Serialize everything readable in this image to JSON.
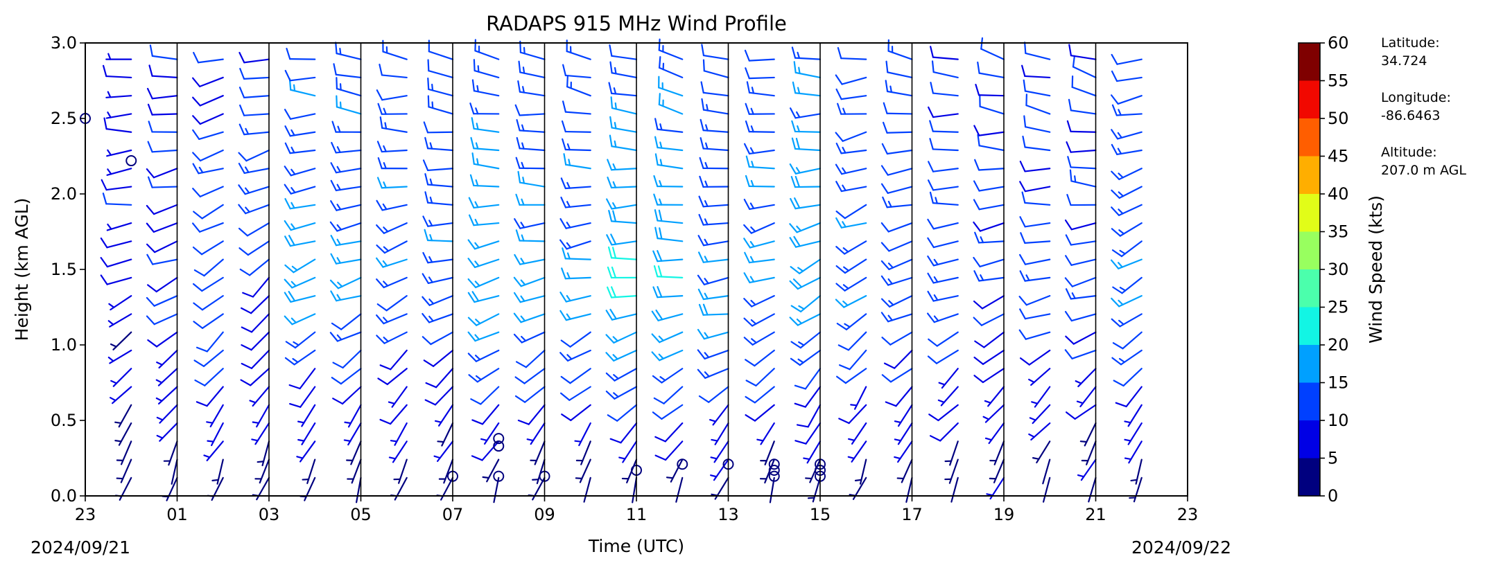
{
  "chart_data": {
    "type": "wind_barb_profile",
    "title": "RADAPS 915 MHz Wind Profile",
    "xlabel": "Time (UTC)",
    "ylabel": "Height (km AGL)",
    "xlim_hours_utc": [
      23,
      47
    ],
    "ylim": [
      0.0,
      3.0
    ],
    "x_ticks": [
      "23",
      "01",
      "03",
      "05",
      "07",
      "09",
      "11",
      "13",
      "15",
      "17",
      "19",
      "21",
      "23"
    ],
    "y_ticks": [
      "0.0",
      "0.5",
      "1.0",
      "1.5",
      "2.0",
      "2.5",
      "3.0"
    ],
    "start_date": "2024/09/21",
    "end_date": "2024/09/22",
    "colorbar": {
      "label": "Wind Speed (kts)",
      "boundaries": [
        0,
        5,
        10,
        15,
        20,
        25,
        30,
        35,
        40,
        45,
        50,
        55,
        60
      ],
      "tick_labels": [
        "0",
        "5",
        "10",
        "15",
        "20",
        "25",
        "30",
        "35",
        "40",
        "45",
        "50",
        "55",
        "60"
      ],
      "colors": [
        "#00007f",
        "#0000e5",
        "#0040ff",
        "#00a0ff",
        "#12f5e4",
        "#4bffac",
        "#98ff5f",
        "#e1fd18",
        "#ffae00",
        "#ff5e00",
        "#f10800",
        "#7f0000"
      ]
    },
    "site_info": [
      {
        "label": "Latitude:",
        "value": "34.724"
      },
      {
        "label": "Longitude:",
        "value": "-86.6463"
      },
      {
        "label": "Altitude:",
        "value": "207.0 m AGL"
      }
    ],
    "profile_times_utc": [
      24,
      25,
      26,
      27,
      28,
      29,
      30,
      31,
      32,
      33,
      34,
      35,
      36,
      37,
      38,
      39,
      40,
      41,
      42,
      43,
      44,
      45,
      46
    ],
    "wind_profile_breaks": [
      {
        "time": 24,
        "height": 1.4,
        "speed_kts": 8,
        "direction_deg": 250
      },
      {
        "time": 25,
        "height": 1.4,
        "speed_kts": 10,
        "direction_deg": 245
      },
      {
        "time": 26,
        "height": 1.0,
        "speed_kts": 12,
        "direction_deg": 230
      },
      {
        "time": 27,
        "height": 1.8,
        "speed_kts": 12,
        "direction_deg": 240
      },
      {
        "time": 28,
        "height": 1.5,
        "speed_kts": 18,
        "direction_deg": 250
      },
      {
        "time": 29,
        "height": 1.5,
        "speed_kts": 17,
        "direction_deg": 255
      },
      {
        "time": 30,
        "height": 1.6,
        "speed_kts": 15,
        "direction_deg": 250
      },
      {
        "time": 31,
        "height": 1.4,
        "speed_kts": 14,
        "direction_deg": 255
      },
      {
        "time": 32,
        "height": 1.4,
        "speed_kts": 18,
        "direction_deg": 255
      },
      {
        "time": 33,
        "height": 1.4,
        "speed_kts": 17,
        "direction_deg": 258
      },
      {
        "time": 34,
        "height": 1.4,
        "speed_kts": 16,
        "direction_deg": 258
      },
      {
        "time": 35,
        "height": 1.3,
        "speed_kts": 20,
        "direction_deg": 260
      },
      {
        "time": 36,
        "height": 1.3,
        "speed_kts": 19,
        "direction_deg": 260
      },
      {
        "time": 37,
        "height": 1.3,
        "speed_kts": 17,
        "direction_deg": 262
      },
      {
        "time": 38,
        "height": 1.4,
        "speed_kts": 16,
        "direction_deg": 250
      },
      {
        "time": 39,
        "height": 1.4,
        "speed_kts": 19,
        "direction_deg": 245
      },
      {
        "time": 40,
        "height": 1.4,
        "speed_kts": 15,
        "direction_deg": 240
      },
      {
        "time": 41,
        "height": 1.4,
        "speed_kts": 14,
        "direction_deg": 250
      },
      {
        "time": 42,
        "height": 1.4,
        "speed_kts": 13,
        "direction_deg": 252
      },
      {
        "time": 43,
        "height": 1.4,
        "speed_kts": 12,
        "direction_deg": 255
      },
      {
        "time": 44,
        "height": 1.4,
        "speed_kts": 12,
        "direction_deg": 258
      },
      {
        "time": 45,
        "height": 1.3,
        "speed_kts": 12,
        "direction_deg": 258
      },
      {
        "time": 46,
        "height": 1.5,
        "speed_kts": 16,
        "direction_deg": 240
      }
    ],
    "calm_points": [
      {
        "time": 23.0,
        "height": 2.5
      },
      {
        "time": 24.0,
        "height": 2.22
      },
      {
        "time": 31.0,
        "height": 0.13
      },
      {
        "time": 32.0,
        "height": 0.13
      },
      {
        "time": 32.0,
        "height": 0.33
      },
      {
        "time": 32.0,
        "height": 0.38
      },
      {
        "time": 33.0,
        "height": 0.13
      },
      {
        "time": 35.0,
        "height": 0.17
      },
      {
        "time": 36.0,
        "height": 0.21
      },
      {
        "time": 37.0,
        "height": 0.21
      },
      {
        "time": 38.0,
        "height": 0.13
      },
      {
        "time": 38.0,
        "height": 0.17
      },
      {
        "time": 38.0,
        "height": 0.21
      },
      {
        "time": 39.0,
        "height": 0.13
      },
      {
        "time": 39.0,
        "height": 0.17
      },
      {
        "time": 39.0,
        "height": 0.21
      }
    ]
  }
}
